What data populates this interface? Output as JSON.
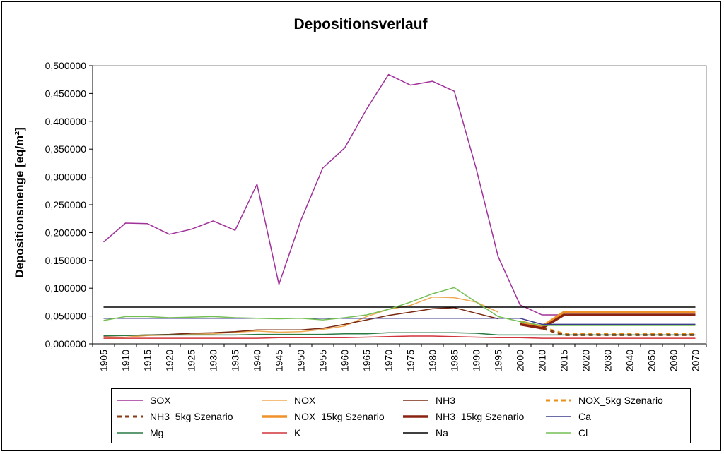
{
  "chart_data": {
    "type": "line",
    "title": "Depositionsverlauf",
    "ylabel": "Depositionsmenge [eq/m²]",
    "xlabel": "",
    "ylim": [
      0,
      0.5
    ],
    "yticks": [
      "0,000000",
      "0,050000",
      "0,100000",
      "0,150000",
      "0,200000",
      "0,250000",
      "0,300000",
      "0,350000",
      "0,400000",
      "0,450000",
      "0,500000"
    ],
    "categories": [
      "1905",
      "1910",
      "1915",
      "1920",
      "1925",
      "1930",
      "1935",
      "1940",
      "1945",
      "1950",
      "1955",
      "1960",
      "1965",
      "1970",
      "1975",
      "1980",
      "1985",
      "1990",
      "1995",
      "2000",
      "2010",
      "2015",
      "2020",
      "2030",
      "2040",
      "2050",
      "2060",
      "2070"
    ],
    "grid": false,
    "legend_position": "bottom",
    "series": [
      {
        "name": "SOX",
        "color": "#a0309a",
        "dash": "solid",
        "width": 1.5,
        "values": [
          0.183,
          0.217,
          0.216,
          0.197,
          0.206,
          0.221,
          0.204,
          0.287,
          0.107,
          0.222,
          0.316,
          0.352,
          0.422,
          0.484,
          0.465,
          0.472,
          0.454,
          0.315,
          0.157,
          0.07,
          0.052,
          0.052,
          null,
          null,
          null,
          null,
          null,
          null
        ]
      },
      {
        "name": "NOX",
        "color": "#f0a850",
        "dash": "solid",
        "width": 1.5,
        "values": [
          0.01,
          0.012,
          0.015,
          0.016,
          0.017,
          0.018,
          0.021,
          0.023,
          0.021,
          0.022,
          0.026,
          0.032,
          0.049,
          0.062,
          0.069,
          0.084,
          0.083,
          0.075,
          0.057,
          null,
          null,
          null,
          null,
          null,
          null,
          null,
          null,
          null
        ]
      },
      {
        "name": "NH3",
        "color": "#7a2a12",
        "dash": "solid",
        "width": 1.5,
        "values": [
          0.014,
          0.015,
          0.016,
          0.017,
          0.019,
          0.02,
          0.022,
          0.025,
          0.025,
          0.025,
          0.028,
          0.035,
          0.043,
          0.051,
          0.057,
          0.063,
          0.065,
          0.055,
          0.045,
          null,
          null,
          null,
          null,
          null,
          null,
          null,
          null,
          null
        ]
      },
      {
        "name": "NOX_5kg Szenario",
        "color": "#e8921a",
        "dash": "dash",
        "width": 3,
        "values": [
          null,
          null,
          null,
          null,
          null,
          null,
          null,
          null,
          null,
          null,
          null,
          null,
          null,
          null,
          null,
          null,
          null,
          null,
          null,
          0.04,
          0.03,
          0.018,
          0.018,
          0.018,
          0.018,
          0.018,
          0.018,
          0.018
        ]
      },
      {
        "name": "NH3_5kg Szenario",
        "color": "#8a3a14",
        "dash": "dash",
        "width": 3,
        "values": [
          null,
          null,
          null,
          null,
          null,
          null,
          null,
          null,
          null,
          null,
          null,
          null,
          null,
          null,
          null,
          null,
          null,
          null,
          null,
          0.035,
          0.028,
          0.016,
          0.016,
          0.016,
          0.016,
          0.016,
          0.016,
          0.016
        ]
      },
      {
        "name": "NOX_15kg Szenario",
        "color": "#f0922a",
        "dash": "solid",
        "width": 3.5,
        "values": [
          null,
          null,
          null,
          null,
          null,
          null,
          null,
          null,
          null,
          null,
          null,
          null,
          null,
          null,
          null,
          null,
          null,
          null,
          null,
          0.04,
          0.031,
          0.057,
          0.057,
          0.057,
          0.057,
          0.057,
          0.057,
          0.057
        ]
      },
      {
        "name": "NH3_15kg Szenario",
        "color": "#8a2410",
        "dash": "solid",
        "width": 3.5,
        "values": [
          null,
          null,
          null,
          null,
          null,
          null,
          null,
          null,
          null,
          null,
          null,
          null,
          null,
          null,
          null,
          null,
          null,
          null,
          null,
          0.035,
          0.028,
          0.052,
          0.052,
          0.052,
          0.052,
          0.052,
          0.052,
          0.052
        ]
      },
      {
        "name": "Ca",
        "color": "#3a3a8c",
        "dash": "solid",
        "width": 1.5,
        "values": [
          0.046,
          0.046,
          0.046,
          0.046,
          0.046,
          0.046,
          0.046,
          0.046,
          0.046,
          0.046,
          0.046,
          0.046,
          0.046,
          0.046,
          0.046,
          0.046,
          0.046,
          0.046,
          0.046,
          0.046,
          0.035,
          0.035,
          0.035,
          0.035,
          0.035,
          0.035,
          0.035,
          0.035
        ]
      },
      {
        "name": "Mg",
        "color": "#2a7a44",
        "dash": "solid",
        "width": 1.5,
        "values": [
          0.015,
          0.015,
          0.016,
          0.016,
          0.016,
          0.016,
          0.016,
          0.017,
          0.017,
          0.017,
          0.017,
          0.018,
          0.018,
          0.02,
          0.02,
          0.02,
          0.02,
          0.019,
          0.016,
          0.016,
          0.016,
          0.016,
          0.016,
          0.016,
          0.016,
          0.016,
          0.016,
          0.016
        ]
      },
      {
        "name": "K",
        "color": "#d0343c",
        "dash": "solid",
        "width": 1.5,
        "values": [
          0.01,
          0.01,
          0.01,
          0.01,
          0.01,
          0.01,
          0.01,
          0.01,
          0.011,
          0.011,
          0.011,
          0.011,
          0.012,
          0.013,
          0.014,
          0.014,
          0.013,
          0.012,
          0.011,
          0.011,
          0.01,
          0.01,
          0.01,
          0.01,
          0.01,
          0.01,
          0.01,
          0.01
        ]
      },
      {
        "name": "Na",
        "color": "#000000",
        "dash": "solid",
        "width": 1.5,
        "values": [
          0.066,
          0.066,
          0.066,
          0.066,
          0.066,
          0.066,
          0.066,
          0.066,
          0.066,
          0.066,
          0.066,
          0.066,
          0.066,
          0.066,
          0.066,
          0.066,
          0.066,
          0.066,
          0.066,
          0.066,
          0.066,
          0.066,
          0.066,
          0.066,
          0.066,
          0.066,
          0.066,
          0.066
        ]
      },
      {
        "name": "Cl",
        "color": "#74bf54",
        "dash": "solid",
        "width": 1.5,
        "values": [
          0.042,
          0.049,
          0.049,
          0.047,
          0.048,
          0.049,
          0.047,
          0.046,
          0.045,
          0.046,
          0.043,
          0.047,
          0.052,
          0.062,
          0.075,
          0.09,
          0.101,
          0.075,
          0.049,
          0.04,
          0.033,
          0.033,
          0.033,
          0.033,
          0.033,
          0.033,
          0.033,
          0.033
        ]
      }
    ]
  }
}
